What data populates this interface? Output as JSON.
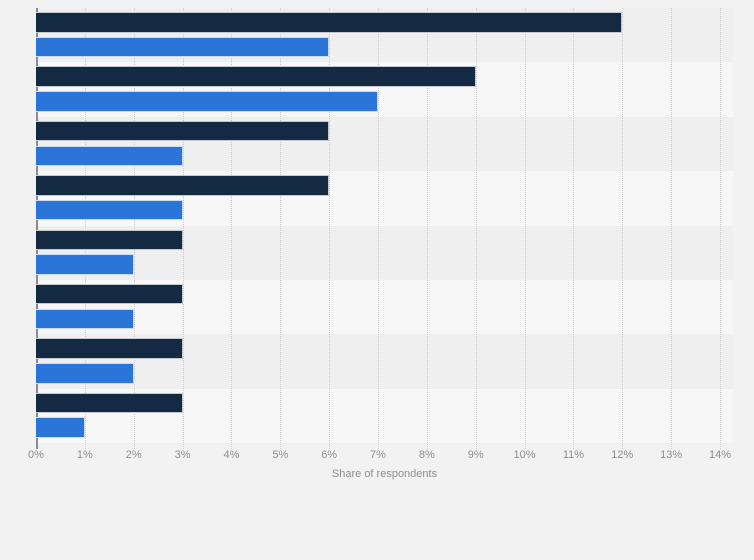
{
  "page": {
    "background": "#f2f2f3"
  },
  "chart_data": {
    "type": "bar",
    "orientation": "horizontal",
    "title": "",
    "xlabel": "Share of respondents",
    "ylabel": "",
    "unit": "%",
    "xlim": [
      0,
      14
    ],
    "x_tick_labels": [
      "0%",
      "1%",
      "2%",
      "3%",
      "4%",
      "5%",
      "6%",
      "7%",
      "8%",
      "9%",
      "10%",
      "11%",
      "12%",
      "13%",
      "14%"
    ],
    "grid": "vertical dotted gridlines at every 1%",
    "legend": "none",
    "category_labels_visible": false,
    "categories": [
      "",
      "",
      "",
      "",
      "",
      "",
      "",
      ""
    ],
    "series": [
      {
        "name": "series-dark-navy",
        "color": "#142a42",
        "values": [
          12,
          9,
          6,
          6,
          3,
          3,
          3,
          3
        ]
      },
      {
        "name": "series-blue",
        "color": "#2b74d8",
        "values": [
          6,
          7,
          3,
          3,
          2,
          2,
          2,
          1
        ]
      }
    ],
    "colors": {
      "band_dark": "#efeff0",
      "band_light": "#f7f7f8",
      "gridline": "#cccccc",
      "axis_line": "#8b8b8b",
      "tick_text": "#8e8e8e",
      "axis_label_text": "#8e8e8e"
    }
  }
}
